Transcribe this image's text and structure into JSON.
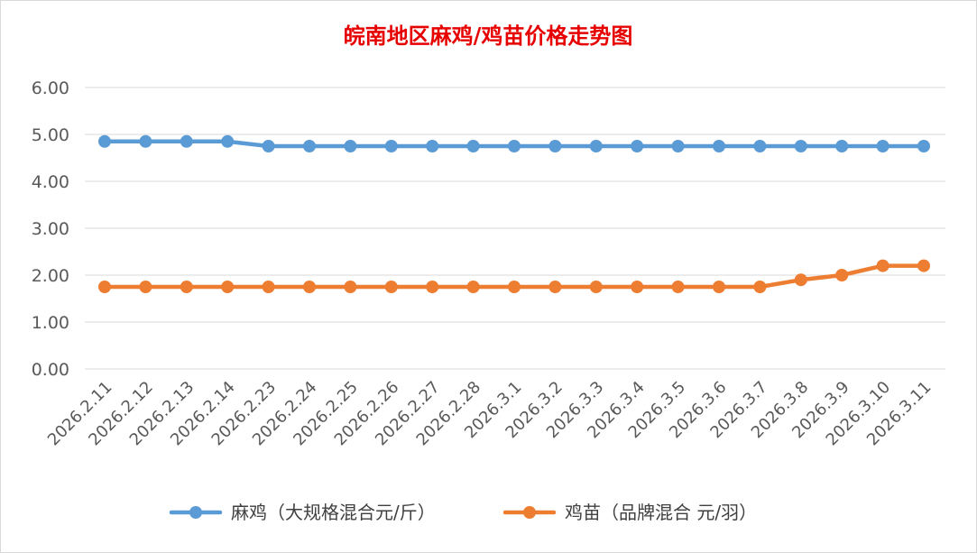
{
  "chart_data": {
    "type": "line",
    "title": "皖南地区麻鸡/鸡苗价格走势图",
    "xlabel": "",
    "ylabel": "",
    "ylim": [
      0,
      6
    ],
    "yticks": [
      "0.00",
      "1.00",
      "2.00",
      "3.00",
      "4.00",
      "5.00",
      "6.00"
    ],
    "grid": true,
    "legend_position": "bottom",
    "categories": [
      "2026.2.11",
      "2026.2.12",
      "2026.2.13",
      "2026.2.14",
      "2026.2.23",
      "2026.2.24",
      "2026.2.25",
      "2026.2.26",
      "2026.2.27",
      "2026.2.28",
      "2026.3.1",
      "2026.3.2",
      "2026.3.3",
      "2026.3.4",
      "2026.3.5",
      "2026.3.6",
      "2026.3.7",
      "2026.3.8",
      "2026.3.9",
      "2026.3.10",
      "2026.3.11"
    ],
    "series": [
      {
        "name": "麻鸡（大规格混合元/斤）",
        "color": "#5b9bd5",
        "values": [
          4.85,
          4.85,
          4.85,
          4.85,
          4.75,
          4.75,
          4.75,
          4.75,
          4.75,
          4.75,
          4.75,
          4.75,
          4.75,
          4.75,
          4.75,
          4.75,
          4.75,
          4.75,
          4.75,
          4.75,
          4.75
        ]
      },
      {
        "name": "鸡苗（品牌混合 元/羽）",
        "color": "#ed7d31",
        "values": [
          1.75,
          1.75,
          1.75,
          1.75,
          1.75,
          1.75,
          1.75,
          1.75,
          1.75,
          1.75,
          1.75,
          1.75,
          1.75,
          1.75,
          1.75,
          1.75,
          1.75,
          1.9,
          2.0,
          2.2,
          2.2
        ]
      }
    ]
  }
}
